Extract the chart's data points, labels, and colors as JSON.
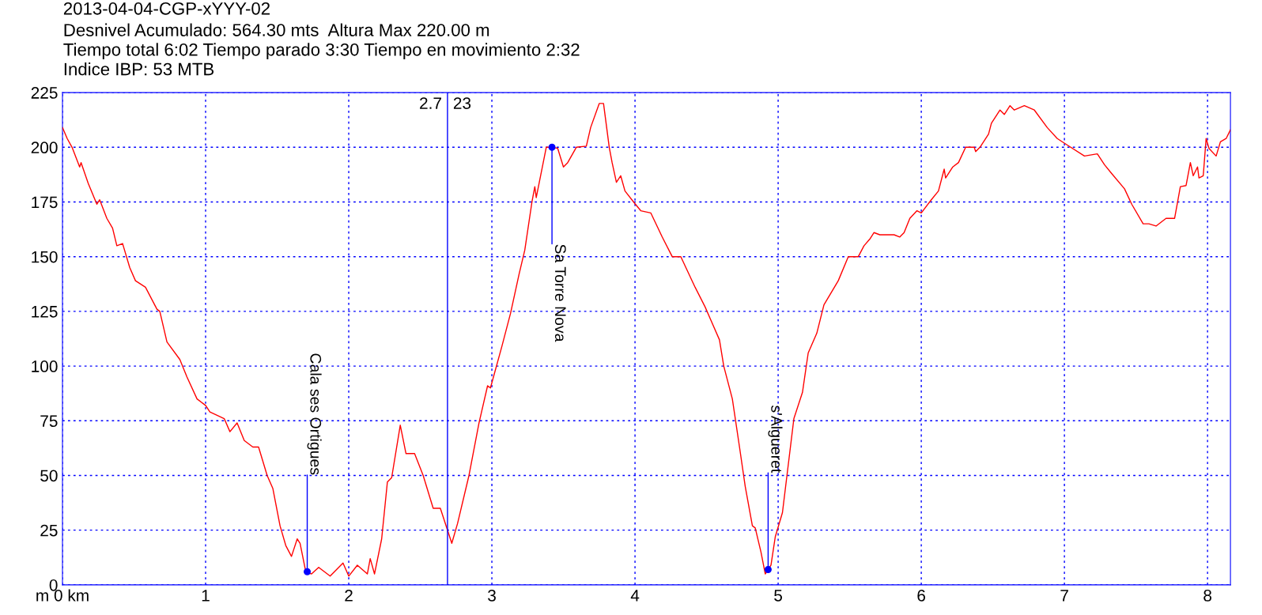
{
  "chart_data": {
    "type": "line",
    "title": "2013-04-04-CGP-xYYY-02",
    "subtitle": "Desnivel Acumulado: 564.30 mts  Altura Max 220.00 m\nTiempo total 6:02 Tiempo parado 3:30 Tiempo en movimiento 2:32\nIndice IBP: 53 MTB",
    "series": [
      {
        "color": "#ff0000",
        "x": [
          0,
          0.033,
          0.067,
          0.12,
          0.13,
          0.18,
          0.24,
          0.26,
          0.31,
          0.35,
          0.38,
          0.42,
          0.47,
          0.51,
          0.58,
          0.66,
          0.68,
          0.73,
          0.82,
          0.87,
          0.94,
          1.0,
          1.03,
          1.13,
          1.17,
          1.22,
          1.27,
          1.33,
          1.37,
          1.43,
          1.47,
          1.52,
          1.56,
          1.6,
          1.64,
          1.66,
          1.7,
          1.74,
          1.79,
          1.87,
          1.96,
          2.0,
          2.06,
          2.13,
          2.15,
          2.18,
          2.23,
          2.27,
          2.3,
          2.36,
          2.4,
          2.46,
          2.52,
          2.59,
          2.64,
          2.72,
          2.76,
          2.84,
          2.91,
          2.97,
          2.99,
          3.07,
          3.13,
          3.19,
          3.23,
          3.28,
          3.3,
          3.31,
          3.38,
          3.42,
          3.46,
          3.5,
          3.53,
          3.59,
          3.66,
          3.69,
          3.75,
          3.78,
          3.82,
          3.84,
          3.87,
          3.9,
          3.93,
          3.99,
          4.04,
          4.11,
          4.19,
          4.26,
          4.32,
          4.42,
          4.49,
          4.53,
          4.59,
          4.62,
          4.68,
          4.73,
          4.77,
          4.82,
          4.84,
          4.88,
          4.91,
          4.95,
          4.98,
          5.03,
          5.11,
          5.17,
          5.21,
          5.27,
          5.32,
          5.42,
          5.49,
          5.56,
          5.6,
          5.64,
          5.67,
          5.71,
          5.74,
          5.81,
          5.85,
          5.88,
          5.92,
          5.97,
          6.0,
          6.07,
          6.12,
          6.16,
          6.17,
          6.22,
          6.26,
          6.31,
          6.37,
          6.38,
          6.41,
          6.47,
          6.49,
          6.55,
          6.58,
          6.62,
          6.65,
          6.72,
          6.79,
          6.88,
          6.95,
          7.02,
          7.14,
          7.23,
          7.28,
          7.33,
          7.42,
          7.47,
          7.55,
          7.59,
          7.64,
          7.71,
          7.77,
          7.81,
          7.85,
          7.88,
          7.9,
          7.93,
          7.94,
          7.97,
          7.99,
          8.01,
          8.06,
          8.09,
          8.13,
          8.16
        ],
        "values": [
          209,
          204,
          200,
          191,
          193,
          183.5,
          174,
          176,
          167.5,
          163,
          155,
          156,
          145,
          139,
          136,
          126,
          125,
          111,
          103,
          95,
          85,
          82,
          79,
          76,
          70,
          74,
          66,
          63,
          63,
          50,
          44,
          27,
          18,
          13,
          21,
          19,
          6,
          5,
          8,
          4,
          10,
          4,
          9,
          5,
          12,
          5,
          21,
          47,
          49,
          73,
          60,
          60,
          50,
          35,
          35,
          19,
          28,
          50,
          74,
          91,
          90,
          109,
          124,
          142,
          153,
          175,
          182,
          177,
          200,
          200,
          199.5,
          191,
          193,
          200,
          200.5,
          209,
          220,
          220,
          200,
          193,
          184,
          187,
          180,
          175,
          171,
          170,
          159,
          150,
          150,
          136,
          127,
          121,
          112,
          100,
          85,
          63,
          45,
          27,
          26,
          15,
          5,
          9,
          22,
          33,
          76,
          88,
          106,
          115,
          128,
          139,
          150,
          150,
          155,
          158,
          161,
          160,
          160,
          160,
          159,
          161,
          167.5,
          171,
          170,
          176,
          180,
          190,
          186,
          191,
          193,
          200,
          200,
          198,
          200,
          206,
          211,
          217,
          215,
          219,
          217,
          219,
          217,
          209,
          204,
          201,
          196,
          197,
          192,
          188,
          181,
          174,
          165,
          165,
          164,
          167.5,
          167.5,
          182,
          182.5,
          193,
          187,
          191,
          186,
          187,
          204,
          199.5,
          196,
          202.5,
          204,
          208
        ]
      },
      {
        "type": "scatter",
        "color": "#0000ff",
        "marker": "circle",
        "x": [
          1.71,
          3.42,
          4.93
        ],
        "values": [
          6,
          200,
          7
        ]
      }
    ],
    "annotations": [
      {
        "text": "Cala ses Ortigues",
        "x": 1.71,
        "y": 6
      },
      {
        "text": "Sa Torre Nova",
        "x": 3.42,
        "y": 200
      },
      {
        "text": "s'Algueret",
        "x": 4.93,
        "y": 7
      },
      {
        "text": "23",
        "x": 2.69,
        "y": 225
      }
    ],
    "ref_lines": [
      {
        "axis": "x",
        "value": 2.69,
        "label": "2.7",
        "color": "#0000ff"
      }
    ],
    "xlim": [
      0,
      8.16
    ],
    "xticks": [
      {
        "value": 0,
        "label": "m 0 km"
      },
      1,
      2,
      3,
      4,
      5,
      6,
      7,
      8
    ],
    "ylim": [
      0,
      225
    ],
    "yticks": [
      0,
      25,
      50,
      75,
      100,
      125,
      150,
      175,
      200,
      225
    ],
    "grid": true
  }
}
